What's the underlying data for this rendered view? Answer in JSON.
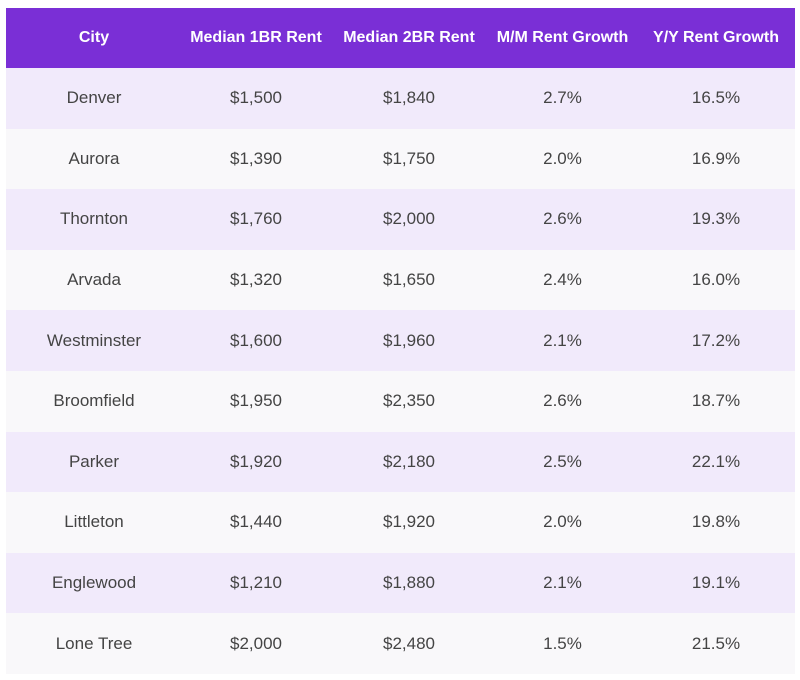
{
  "table": {
    "headers": [
      "City",
      "Median 1BR Rent",
      "Median 2BR Rent",
      "M/M Rent Growth",
      "Y/Y Rent Growth"
    ],
    "rows": [
      [
        "Denver",
        "$1,500",
        "$1,840",
        "2.7%",
        "16.5%"
      ],
      [
        "Aurora",
        "$1,390",
        "$1,750",
        "2.0%",
        "16.9%"
      ],
      [
        "Thornton",
        "$1,760",
        "$2,000",
        "2.6%",
        "19.3%"
      ],
      [
        "Arvada",
        "$1,320",
        "$1,650",
        "2.4%",
        "16.0%"
      ],
      [
        "Westminster",
        "$1,600",
        "$1,960",
        "2.1%",
        "17.2%"
      ],
      [
        "Broomfield",
        "$1,950",
        "$2,350",
        "2.6%",
        "18.7%"
      ],
      [
        "Parker",
        "$1,920",
        "$2,180",
        "2.5%",
        "22.1%"
      ],
      [
        "Littleton",
        "$1,440",
        "$1,920",
        "2.0%",
        "19.8%"
      ],
      [
        "Englewood",
        "$1,210",
        "$1,880",
        "2.1%",
        "19.1%"
      ],
      [
        "Lone Tree",
        "$2,000",
        "$2,480",
        "1.5%",
        "21.5%"
      ]
    ]
  },
  "colors": {
    "header_bg": "#7a2fd6",
    "header_text": "#ffffff",
    "row_odd_bg": "#f1eafb",
    "row_even_bg": "#f9f8fa",
    "cell_text": "#444444"
  }
}
